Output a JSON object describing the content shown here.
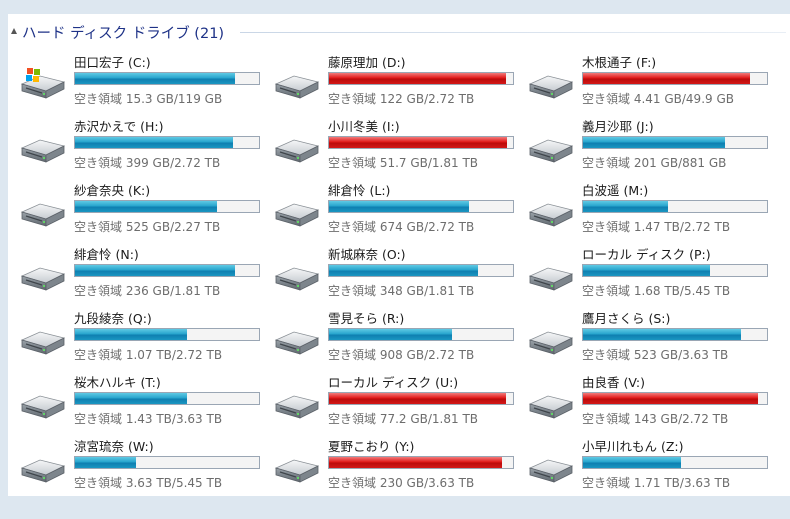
{
  "group": {
    "title": "ハード ディスク ドライブ (21)"
  },
  "colors": {
    "normal_bar": "#27a4cd",
    "full_bar": "#e01919",
    "header_text": "#1e3287"
  },
  "drives": [
    {
      "name": "田口宏子 (C:)",
      "free": "空き領域 15.3 GB/119 GB",
      "fill": 0.87,
      "state": "normal",
      "icon": "windows-drive-icon"
    },
    {
      "name": "藤原理加 (D:)",
      "free": "空き領域 122 GB/2.72 TB",
      "fill": 0.96,
      "state": "full",
      "icon": "hard-drive-icon"
    },
    {
      "name": "木根通子 (F:)",
      "free": "空き領域 4.41 GB/49.9 GB",
      "fill": 0.91,
      "state": "full",
      "icon": "hard-drive-icon"
    },
    {
      "name": "赤沢かえで (H:)",
      "free": "空き領域 399 GB/2.72 TB",
      "fill": 0.86,
      "state": "normal",
      "icon": "hard-drive-icon"
    },
    {
      "name": "小川冬美 (I:)",
      "free": "空き領域 51.7 GB/1.81 TB",
      "fill": 0.97,
      "state": "full",
      "icon": "hard-drive-icon"
    },
    {
      "name": "義月沙耶 (J:)",
      "free": "空き領域 201 GB/881 GB",
      "fill": 0.77,
      "state": "normal",
      "icon": "hard-drive-icon"
    },
    {
      "name": "紗倉奈央 (K:)",
      "free": "空き領域 525 GB/2.27 TB",
      "fill": 0.77,
      "state": "normal",
      "icon": "hard-drive-icon"
    },
    {
      "name": "緋倉怜 (L:)",
      "free": "空き領域 674 GB/2.72 TB",
      "fill": 0.76,
      "state": "normal",
      "icon": "hard-drive-icon"
    },
    {
      "name": "白波遥 (M:)",
      "free": "空き領域 1.47 TB/2.72 TB",
      "fill": 0.46,
      "state": "normal",
      "icon": "hard-drive-icon"
    },
    {
      "name": "緋倉怜 (N:)",
      "free": "空き領域 236 GB/1.81 TB",
      "fill": 0.87,
      "state": "normal",
      "icon": "hard-drive-icon"
    },
    {
      "name": "新城麻奈 (O:)",
      "free": "空き領域 348 GB/1.81 TB",
      "fill": 0.81,
      "state": "normal",
      "icon": "hard-drive-icon"
    },
    {
      "name": "ローカル ディスク (P:)",
      "free": "空き領域 1.68 TB/5.45 TB",
      "fill": 0.69,
      "state": "normal",
      "icon": "hard-drive-icon"
    },
    {
      "name": "九段綾奈 (Q:)",
      "free": "空き領域 1.07 TB/2.72 TB",
      "fill": 0.61,
      "state": "normal",
      "icon": "hard-drive-icon"
    },
    {
      "name": "雪見そら (R:)",
      "free": "空き領域 908 GB/2.72 TB",
      "fill": 0.67,
      "state": "normal",
      "icon": "hard-drive-icon"
    },
    {
      "name": "鷹月さくら (S:)",
      "free": "空き領域 523 GB/3.63 TB",
      "fill": 0.86,
      "state": "normal",
      "icon": "hard-drive-icon"
    },
    {
      "name": "桜木ハルキ (T:)",
      "free": "空き領域 1.43 TB/3.63 TB",
      "fill": 0.61,
      "state": "normal",
      "icon": "hard-drive-icon"
    },
    {
      "name": "ローカル ディスク (U:)",
      "free": "空き領域 77.2 GB/1.81 TB",
      "fill": 0.96,
      "state": "full",
      "icon": "hard-drive-icon"
    },
    {
      "name": "由良香 (V:)",
      "free": "空き領域 143 GB/2.72 TB",
      "fill": 0.95,
      "state": "full",
      "icon": "hard-drive-icon"
    },
    {
      "name": "涼宮琉奈 (W:)",
      "free": "空き領域 3.63 TB/5.45 TB",
      "fill": 0.33,
      "state": "normal",
      "icon": "hard-drive-icon"
    },
    {
      "name": "夏野こおり (Y:)",
      "free": "空き領域 230 GB/3.63 TB",
      "fill": 0.94,
      "state": "full",
      "icon": "hard-drive-icon"
    },
    {
      "name": "小早川れもん (Z:)",
      "free": "空き領域 1.71 TB/3.63 TB",
      "fill": 0.53,
      "state": "normal",
      "icon": "hard-drive-icon"
    }
  ]
}
